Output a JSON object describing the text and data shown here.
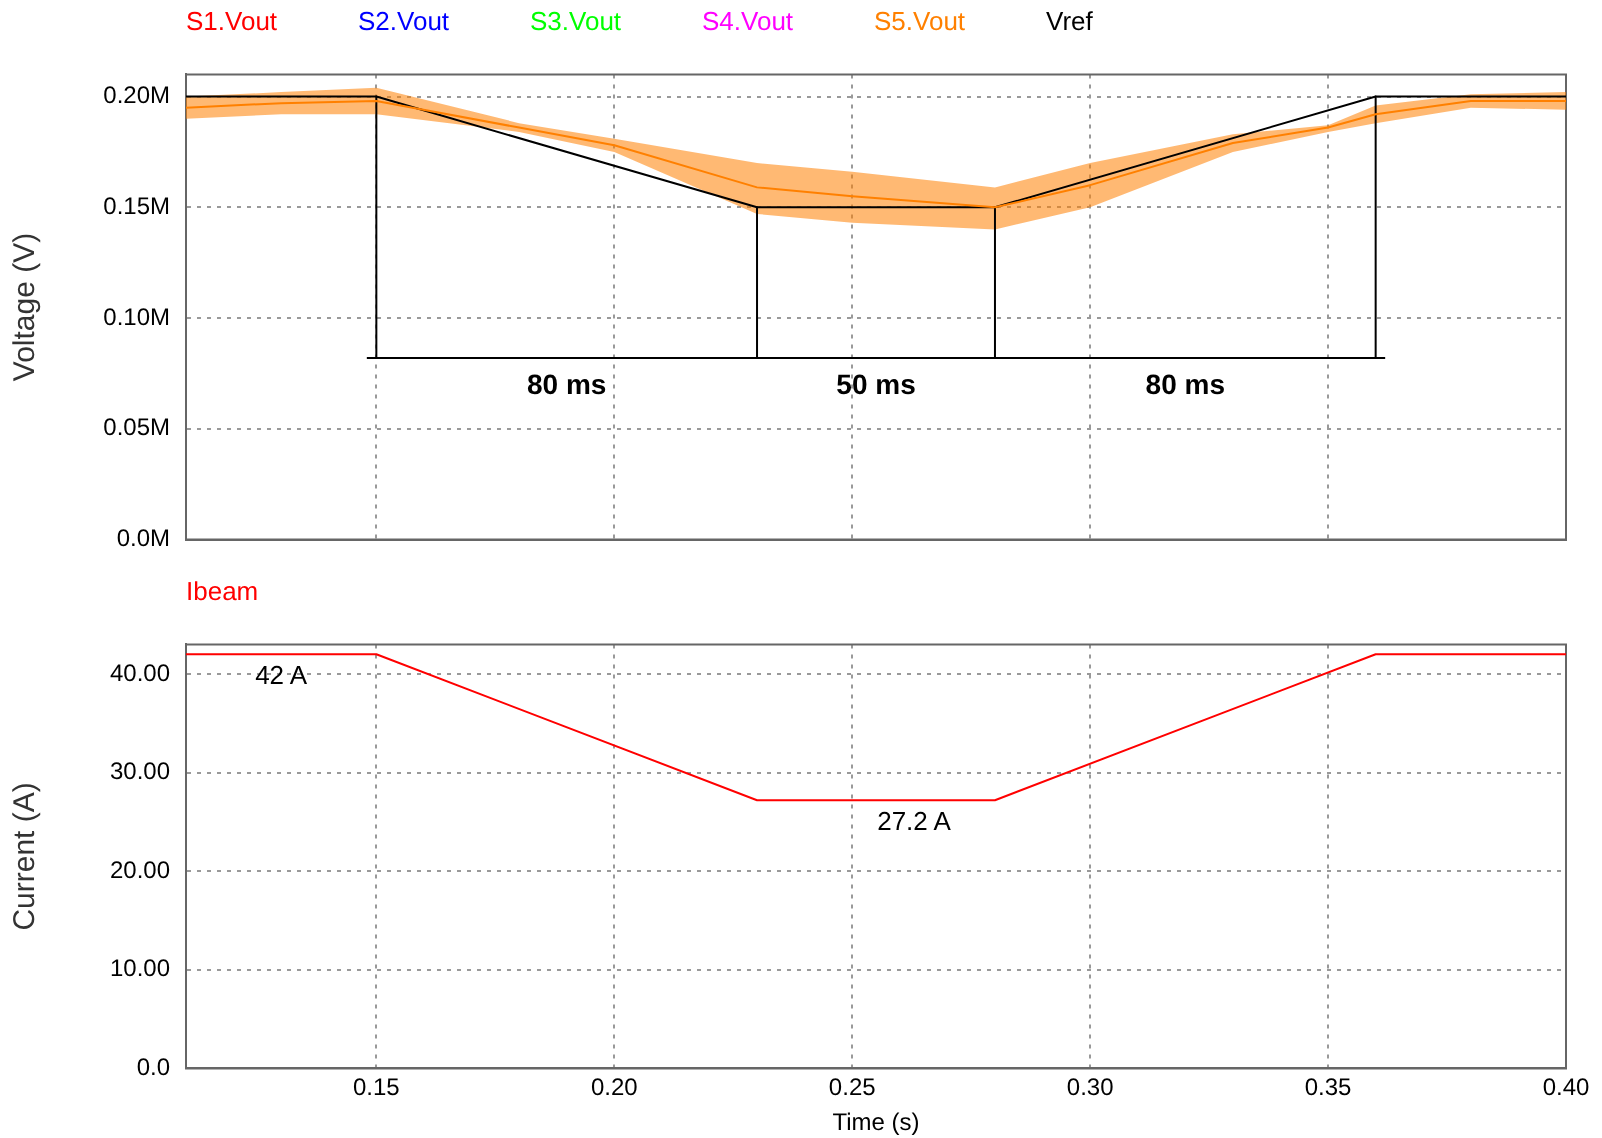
{
  "chart_data": [
    {
      "type": "line",
      "ylabel": "Voltage (V)",
      "legend": "top",
      "grid": true,
      "tick_labels": "y",
      "marker": "none",
      "xlim": [
        0.11,
        0.4
      ],
      "xticks": [
        {
          "value": 0.15,
          "label": null
        },
        {
          "value": 0.2,
          "label": null
        },
        {
          "value": 0.25,
          "label": null
        },
        {
          "value": 0.3,
          "label": null
        },
        {
          "value": 0.35,
          "label": null
        },
        {
          "value": 0.4,
          "label": null
        }
      ],
      "ylim": [
        0,
        0.21
      ],
      "yticks": [
        {
          "value": 0,
          "label": "0.0M"
        },
        {
          "value": 0.05,
          "label": "0.05M"
        },
        {
          "value": 0.1,
          "label": "0.10M"
        },
        {
          "value": 0.15,
          "label": "0.15M"
        },
        {
          "value": 0.2,
          "label": "0.20M"
        }
      ],
      "x": [
        0.11,
        0.13,
        0.15,
        0.18,
        0.2,
        0.23,
        0.25,
        0.28,
        0.3,
        0.33,
        0.35,
        0.36,
        0.38,
        0.4
      ],
      "series": [
        {
          "name": "S1.Vout",
          "color": "#ff0000",
          "values": [
            null,
            null,
            null,
            null,
            null,
            null,
            null,
            null,
            null,
            null,
            null,
            null,
            null,
            null
          ]
        },
        {
          "name": "S2.Vout",
          "color": "#0000ff",
          "values": [
            null,
            null,
            null,
            null,
            null,
            null,
            null,
            null,
            null,
            null,
            null,
            null,
            null,
            null
          ]
        },
        {
          "name": "S3.Vout",
          "color": "#00ff00",
          "values": [
            null,
            null,
            null,
            null,
            null,
            null,
            null,
            null,
            null,
            null,
            null,
            null,
            null,
            null
          ]
        },
        {
          "name": "S4.Vout",
          "color": "#ff00ff",
          "values": [
            null,
            null,
            null,
            null,
            null,
            null,
            null,
            null,
            null,
            null,
            null,
            null,
            null,
            null
          ]
        },
        {
          "name": "S5.Vout",
          "color": "#ff8000",
          "values": [
            0.195,
            0.197,
            0.198,
            0.186,
            0.178,
            0.159,
            0.155,
            0.15,
            0.16,
            0.179,
            0.186,
            0.192,
            0.198,
            0.198
          ],
          "lower": [
            0.19,
            0.192,
            0.192,
            0.184,
            0.175,
            0.147,
            0.143,
            0.14,
            0.15,
            0.175,
            0.184,
            0.188,
            0.195,
            0.194
          ],
          "upper": [
            0.2,
            0.202,
            0.204,
            0.188,
            0.181,
            0.17,
            0.166,
            0.159,
            0.17,
            0.183,
            0.187,
            0.196,
            0.201,
            0.202
          ]
        },
        {
          "name": "Vref",
          "color": "#000000",
          "x": [
            0.11,
            0.15,
            0.23,
            0.28,
            0.36,
            0.4
          ],
          "values": [
            0.2,
            0.2,
            0.15,
            0.15,
            0.2,
            0.2
          ]
        },
        {
          "type": "line",
          "color": "#000000",
          "x": [
            0.148,
            0.362
          ],
          "values": [
            0.082,
            0.082
          ]
        },
        {
          "type": "line",
          "color": "#000000",
          "x": [
            0.15,
            0.15
          ],
          "values": [
            0.2,
            0.082
          ]
        },
        {
          "type": "line",
          "color": "#000000",
          "x": [
            0.23,
            0.23
          ],
          "values": [
            0.15,
            0.082
          ]
        },
        {
          "type": "line",
          "color": "#000000",
          "x": [
            0.28,
            0.28
          ],
          "values": [
            0.15,
            0.082
          ]
        },
        {
          "type": "line",
          "color": "#000000",
          "x": [
            0.36,
            0.36
          ],
          "values": [
            0.2,
            0.082
          ]
        }
      ],
      "annotations": [
        {
          "text": "80 ms",
          "x": 0.19,
          "y": 0.082
        },
        {
          "text": "50 ms",
          "x": 0.255,
          "y": 0.082
        },
        {
          "text": "80 ms",
          "x": 0.32,
          "y": 0.082
        }
      ]
    },
    {
      "type": "line",
      "ylabel": "Current (A)",
      "xlabel": "Time (s)",
      "legend": "top",
      "grid": true,
      "marker": "none",
      "xlim": [
        0.11,
        0.4
      ],
      "xticks": [
        {
          "value": 0.15,
          "label": "0.15"
        },
        {
          "value": 0.2,
          "label": "0.20"
        },
        {
          "value": 0.25,
          "label": "0.25"
        },
        {
          "value": 0.3,
          "label": "0.30"
        },
        {
          "value": 0.35,
          "label": "0.35"
        },
        {
          "value": 0.4,
          "label": "0.40"
        }
      ],
      "ylim": [
        0,
        43
      ],
      "yticks": [
        {
          "value": 0,
          "label": "0.0"
        },
        {
          "value": 10,
          "label": "10.00"
        },
        {
          "value": 20,
          "label": "20.00"
        },
        {
          "value": 30,
          "label": "30.00"
        },
        {
          "value": 40,
          "label": "40.00"
        }
      ],
      "x": [
        0.11,
        0.15,
        0.23,
        0.28,
        0.36,
        0.4
      ],
      "series": [
        {
          "name": "Ibeam",
          "color": "#ff0000",
          "values": [
            42,
            42,
            27.2,
            27.2,
            42,
            42
          ]
        }
      ],
      "annotations": [
        {
          "text": "42 A",
          "x": 0.13,
          "y": 42
        },
        {
          "text": "27.2 A",
          "x": 0.263,
          "y": 27.2
        }
      ]
    }
  ]
}
